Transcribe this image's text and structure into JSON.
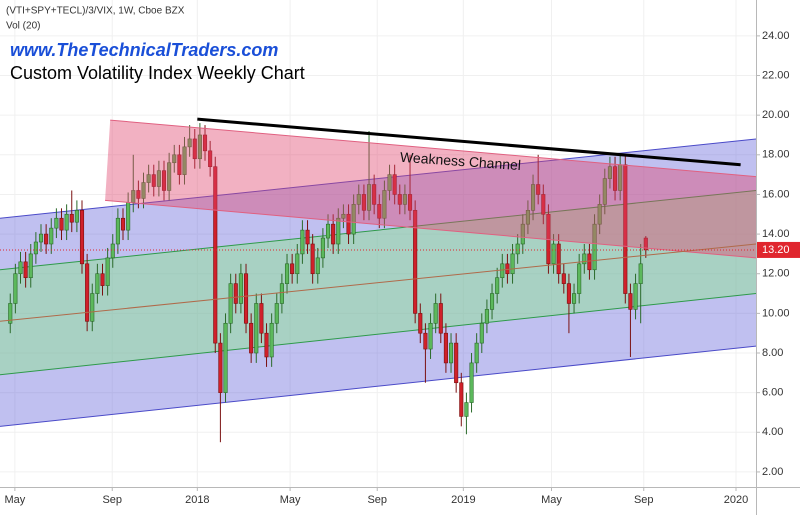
{
  "chart_data": {
    "type": "candlestick",
    "header": "(VTI+SPY+TECL)/3/VIX, 1W, Cboe BZX",
    "indicator": "Vol (20)",
    "website": "www.TheTechnicalTraders.com",
    "title": "Custom Volatility Index Weekly Chart",
    "annotation": "Weakness Channel",
    "up_color": "#5cb85c",
    "down_color": "#d0202a",
    "xlim": [
      0,
      147.5
    ],
    "ylim": [
      1.24,
      25.81
    ],
    "grid": true,
    "xticks": [
      {
        "value": 2.9,
        "label": "May"
      },
      {
        "value": 21.9,
        "label": "Sep"
      },
      {
        "value": 38.5,
        "label": "2018"
      },
      {
        "value": 56.6,
        "label": "May"
      },
      {
        "value": 73.6,
        "label": "Sep"
      },
      {
        "value": 90.4,
        "label": "2019"
      },
      {
        "value": 107.6,
        "label": "May"
      },
      {
        "value": 125.6,
        "label": "Sep"
      },
      {
        "value": 143.6,
        "label": "2020"
      }
    ],
    "yticks": [
      {
        "value": 2,
        "label": "2.00"
      },
      {
        "value": 4,
        "label": "4.00"
      },
      {
        "value": 6,
        "label": "6.00"
      },
      {
        "value": 8,
        "label": "8.00"
      },
      {
        "value": 10,
        "label": "10.00"
      },
      {
        "value": 12,
        "label": "12.00"
      },
      {
        "value": 14,
        "label": "14.00"
      },
      {
        "value": 16,
        "label": "16.00"
      },
      {
        "value": 18,
        "label": "18.00"
      },
      {
        "value": 20,
        "label": "20.00"
      },
      {
        "value": 22,
        "label": "22.00"
      },
      {
        "value": 24,
        "label": "24.00"
      }
    ],
    "last_price": {
      "value": 13.2,
      "label": "13.20",
      "color": "#e0262e"
    },
    "channels": [
      {
        "fill": "rgba(90,90,215,0.38)",
        "edge": "#4a4ac8",
        "points": [
          [
            0,
            14.8
          ],
          [
            147.5,
            18.8
          ],
          [
            147.5,
            8.35
          ],
          [
            0,
            4.3
          ]
        ]
      },
      {
        "fill": "rgba(140,230,140,0.45)",
        "edge": "#2e9a4a",
        "points": [
          [
            0,
            12.2
          ],
          [
            147.5,
            16.2
          ],
          [
            147.5,
            11.0
          ],
          [
            0,
            6.9
          ]
        ]
      },
      {
        "fill": "rgba(225,70,110,0.42)",
        "edge": "#e06080",
        "points": [
          [
            21.5,
            19.75
          ],
          [
            147.5,
            16.9
          ],
          [
            147.5,
            12.8
          ],
          [
            20.5,
            15.7
          ]
        ]
      }
    ],
    "lines": [
      {
        "color": "#b06a4a",
        "width": 1,
        "points": [
          [
            0,
            9.6
          ],
          [
            147.5,
            13.5
          ]
        ]
      },
      {
        "color": "#000000",
        "width": 3,
        "points": [
          [
            38.5,
            19.8
          ],
          [
            144.5,
            17.5
          ]
        ]
      }
    ],
    "x": [
      2,
      3,
      4,
      5,
      6,
      7,
      8,
      9,
      10,
      11,
      12,
      13,
      14,
      15,
      16,
      17,
      18,
      19,
      20,
      21,
      22,
      23,
      24,
      25,
      26,
      27,
      28,
      29,
      30,
      31,
      32,
      33,
      34,
      35,
      36,
      37,
      38,
      39,
      40,
      41,
      42,
      43,
      44,
      45,
      46,
      47,
      48,
      49,
      50,
      51,
      52,
      53,
      54,
      55,
      56,
      57,
      58,
      59,
      60,
      61,
      62,
      63,
      64,
      65,
      66,
      67,
      68,
      69,
      70,
      71,
      72,
      73,
      74,
      75,
      76,
      77,
      78,
      79,
      80,
      81,
      82,
      83,
      84,
      85,
      86,
      87,
      88,
      89,
      90,
      91,
      92,
      93,
      94,
      95,
      96,
      97,
      98,
      99,
      100,
      101,
      102,
      103,
      104,
      105,
      106,
      107,
      108,
      109,
      110,
      111,
      112,
      113,
      114,
      115,
      116,
      117,
      118,
      119,
      120,
      121,
      122,
      123,
      124,
      125,
      126
    ],
    "ohlc": [
      [
        9.5,
        11.0,
        9.0,
        10.5
      ],
      [
        10.5,
        12.5,
        10.0,
        12.0
      ],
      [
        12.0,
        13.1,
        11.5,
        12.6
      ],
      [
        12.6,
        13.1,
        11.3,
        11.8
      ],
      [
        11.8,
        13.5,
        11.3,
        13.0
      ],
      [
        13.0,
        14.1,
        12.5,
        13.6
      ],
      [
        13.6,
        14.5,
        13.1,
        14.0
      ],
      [
        14.0,
        14.5,
        13.0,
        13.5
      ],
      [
        13.5,
        14.8,
        13.0,
        14.3
      ],
      [
        14.3,
        15.3,
        13.8,
        14.8
      ],
      [
        14.8,
        15.3,
        13.7,
        14.2
      ],
      [
        14.2,
        15.5,
        13.7,
        15.0
      ],
      [
        15.0,
        16.2,
        14.1,
        14.6
      ],
      [
        14.6,
        15.7,
        14.1,
        15.2
      ],
      [
        15.2,
        15.7,
        12.0,
        12.5
      ],
      [
        12.5,
        13.0,
        9.1,
        9.6
      ],
      [
        9.6,
        11.5,
        9.1,
        11.0
      ],
      [
        11.0,
        12.5,
        10.5,
        12.0
      ],
      [
        12.0,
        12.5,
        10.9,
        11.4
      ],
      [
        11.4,
        13.3,
        10.9,
        12.8
      ],
      [
        12.8,
        14.0,
        12.3,
        13.5
      ],
      [
        13.5,
        15.3,
        13.0,
        14.8
      ],
      [
        14.8,
        15.3,
        13.7,
        14.2
      ],
      [
        14.2,
        16.1,
        13.7,
        15.6
      ],
      [
        15.6,
        18.0,
        15.1,
        16.2
      ],
      [
        16.2,
        16.7,
        15.3,
        15.8
      ],
      [
        15.8,
        17.1,
        15.3,
        16.6
      ],
      [
        16.6,
        17.5,
        16.1,
        17.0
      ],
      [
        17.0,
        17.5,
        15.9,
        16.4
      ],
      [
        16.4,
        17.7,
        15.9,
        17.2
      ],
      [
        17.2,
        17.7,
        15.7,
        16.2
      ],
      [
        16.2,
        18.1,
        15.7,
        17.6
      ],
      [
        17.6,
        18.5,
        17.1,
        18.0
      ],
      [
        18.0,
        18.5,
        16.5,
        17.0
      ],
      [
        17.0,
        18.9,
        16.5,
        18.4
      ],
      [
        18.4,
        19.5,
        17.9,
        18.8
      ],
      [
        18.8,
        19.3,
        17.3,
        17.8
      ],
      [
        17.8,
        19.6,
        17.3,
        19.0
      ],
      [
        19.0,
        19.5,
        17.7,
        18.2
      ],
      [
        18.2,
        18.7,
        16.9,
        17.4
      ],
      [
        17.4,
        17.9,
        8.0,
        8.5
      ],
      [
        8.5,
        9.0,
        3.5,
        6.0
      ],
      [
        6.0,
        10.0,
        5.5,
        9.5
      ],
      [
        9.5,
        12.0,
        9.0,
        11.5
      ],
      [
        11.5,
        12.0,
        10.0,
        10.5
      ],
      [
        10.5,
        12.5,
        10.0,
        12.0
      ],
      [
        12.0,
        12.5,
        9.0,
        9.5
      ],
      [
        9.5,
        10.0,
        7.5,
        8.0
      ],
      [
        8.0,
        11.0,
        7.5,
        10.5
      ],
      [
        10.5,
        11.0,
        8.5,
        9.0
      ],
      [
        9.0,
        9.5,
        7.3,
        7.8
      ],
      [
        7.8,
        10.0,
        7.3,
        9.5
      ],
      [
        9.5,
        11.0,
        9.0,
        10.5
      ],
      [
        10.5,
        12.0,
        10.0,
        11.5
      ],
      [
        11.5,
        13.0,
        11.0,
        12.5
      ],
      [
        12.5,
        13.0,
        11.5,
        12.0
      ],
      [
        12.0,
        13.5,
        11.5,
        13.0
      ],
      [
        13.0,
        14.7,
        12.5,
        14.2
      ],
      [
        14.2,
        14.7,
        13.0,
        13.5
      ],
      [
        13.5,
        14.0,
        11.5,
        12.0
      ],
      [
        12.0,
        13.3,
        11.5,
        12.8
      ],
      [
        12.8,
        14.3,
        12.3,
        13.8
      ],
      [
        13.8,
        15.0,
        13.3,
        14.5
      ],
      [
        14.5,
        15.0,
        13.0,
        13.5
      ],
      [
        13.5,
        15.3,
        13.0,
        14.8
      ],
      [
        14.8,
        15.5,
        14.3,
        15.0
      ],
      [
        15.0,
        15.5,
        13.5,
        14.0
      ],
      [
        14.0,
        16.0,
        13.5,
        15.5
      ],
      [
        15.5,
        16.5,
        15.0,
        16.0
      ],
      [
        16.0,
        16.5,
        14.7,
        15.2
      ],
      [
        15.2,
        19.2,
        14.7,
        16.5
      ],
      [
        16.5,
        17.0,
        15.0,
        15.5
      ],
      [
        15.5,
        16.0,
        14.3,
        14.8
      ],
      [
        14.8,
        16.7,
        14.3,
        16.2
      ],
      [
        16.2,
        17.5,
        15.7,
        17.0
      ],
      [
        17.0,
        17.5,
        15.5,
        16.0
      ],
      [
        16.0,
        16.5,
        15.0,
        15.5
      ],
      [
        15.5,
        16.5,
        15.0,
        16.0
      ],
      [
        16.0,
        18.0,
        14.7,
        15.2
      ],
      [
        15.2,
        15.7,
        9.5,
        10.0
      ],
      [
        10.0,
        10.5,
        8.5,
        9.0
      ],
      [
        9.0,
        9.5,
        6.5,
        8.2
      ],
      [
        8.2,
        10.0,
        7.7,
        9.5
      ],
      [
        9.5,
        11.0,
        9.0,
        10.5
      ],
      [
        10.5,
        11.0,
        8.5,
        9.0
      ],
      [
        9.0,
        9.5,
        7.0,
        7.5
      ],
      [
        7.5,
        9.0,
        7.0,
        8.5
      ],
      [
        8.5,
        9.0,
        6.0,
        6.5
      ],
      [
        6.5,
        7.0,
        4.3,
        4.8
      ],
      [
        4.8,
        6.0,
        3.9,
        5.5
      ],
      [
        5.5,
        8.0,
        5.0,
        7.5
      ],
      [
        7.5,
        9.0,
        7.0,
        8.5
      ],
      [
        8.5,
        10.0,
        8.0,
        9.5
      ],
      [
        9.5,
        10.7,
        9.0,
        10.2
      ],
      [
        10.2,
        11.5,
        9.7,
        11.0
      ],
      [
        11.0,
        12.3,
        10.5,
        11.8
      ],
      [
        11.8,
        13.0,
        11.3,
        12.5
      ],
      [
        12.5,
        13.0,
        11.5,
        12.0
      ],
      [
        12.0,
        13.5,
        11.5,
        13.0
      ],
      [
        13.0,
        14.0,
        12.5,
        13.5
      ],
      [
        13.5,
        15.0,
        13.0,
        14.5
      ],
      [
        14.5,
        15.7,
        14.0,
        15.2
      ],
      [
        15.2,
        17.0,
        14.7,
        16.5
      ],
      [
        16.5,
        18.0,
        15.5,
        16.0
      ],
      [
        16.0,
        16.5,
        14.5,
        15.0
      ],
      [
        15.0,
        15.5,
        12.0,
        12.5
      ],
      [
        12.5,
        14.0,
        12.0,
        13.5
      ],
      [
        13.5,
        14.0,
        11.5,
        12.0
      ],
      [
        12.0,
        12.5,
        11.0,
        11.5
      ],
      [
        11.5,
        12.0,
        9.0,
        10.5
      ],
      [
        10.5,
        11.5,
        10.0,
        11.0
      ],
      [
        11.0,
        13.0,
        10.5,
        12.5
      ],
      [
        12.5,
        13.5,
        12.0,
        13.0
      ],
      [
        13.0,
        13.5,
        11.7,
        12.2
      ],
      [
        12.2,
        15.0,
        11.7,
        14.5
      ],
      [
        14.5,
        16.0,
        14.0,
        15.5
      ],
      [
        15.5,
        17.3,
        15.0,
        16.8
      ],
      [
        16.8,
        17.9,
        16.3,
        17.4
      ],
      [
        17.4,
        17.9,
        15.7,
        16.2
      ],
      [
        16.2,
        18.0,
        15.7,
        17.5
      ],
      [
        17.5,
        18.0,
        10.5,
        11.0
      ],
      [
        11.0,
        11.5,
        7.8,
        10.2
      ],
      [
        10.2,
        12.0,
        9.7,
        11.5
      ],
      [
        11.5,
        13.5,
        9.5,
        12.5
      ],
      [
        13.8,
        13.9,
        12.8,
        13.2
      ]
    ]
  }
}
